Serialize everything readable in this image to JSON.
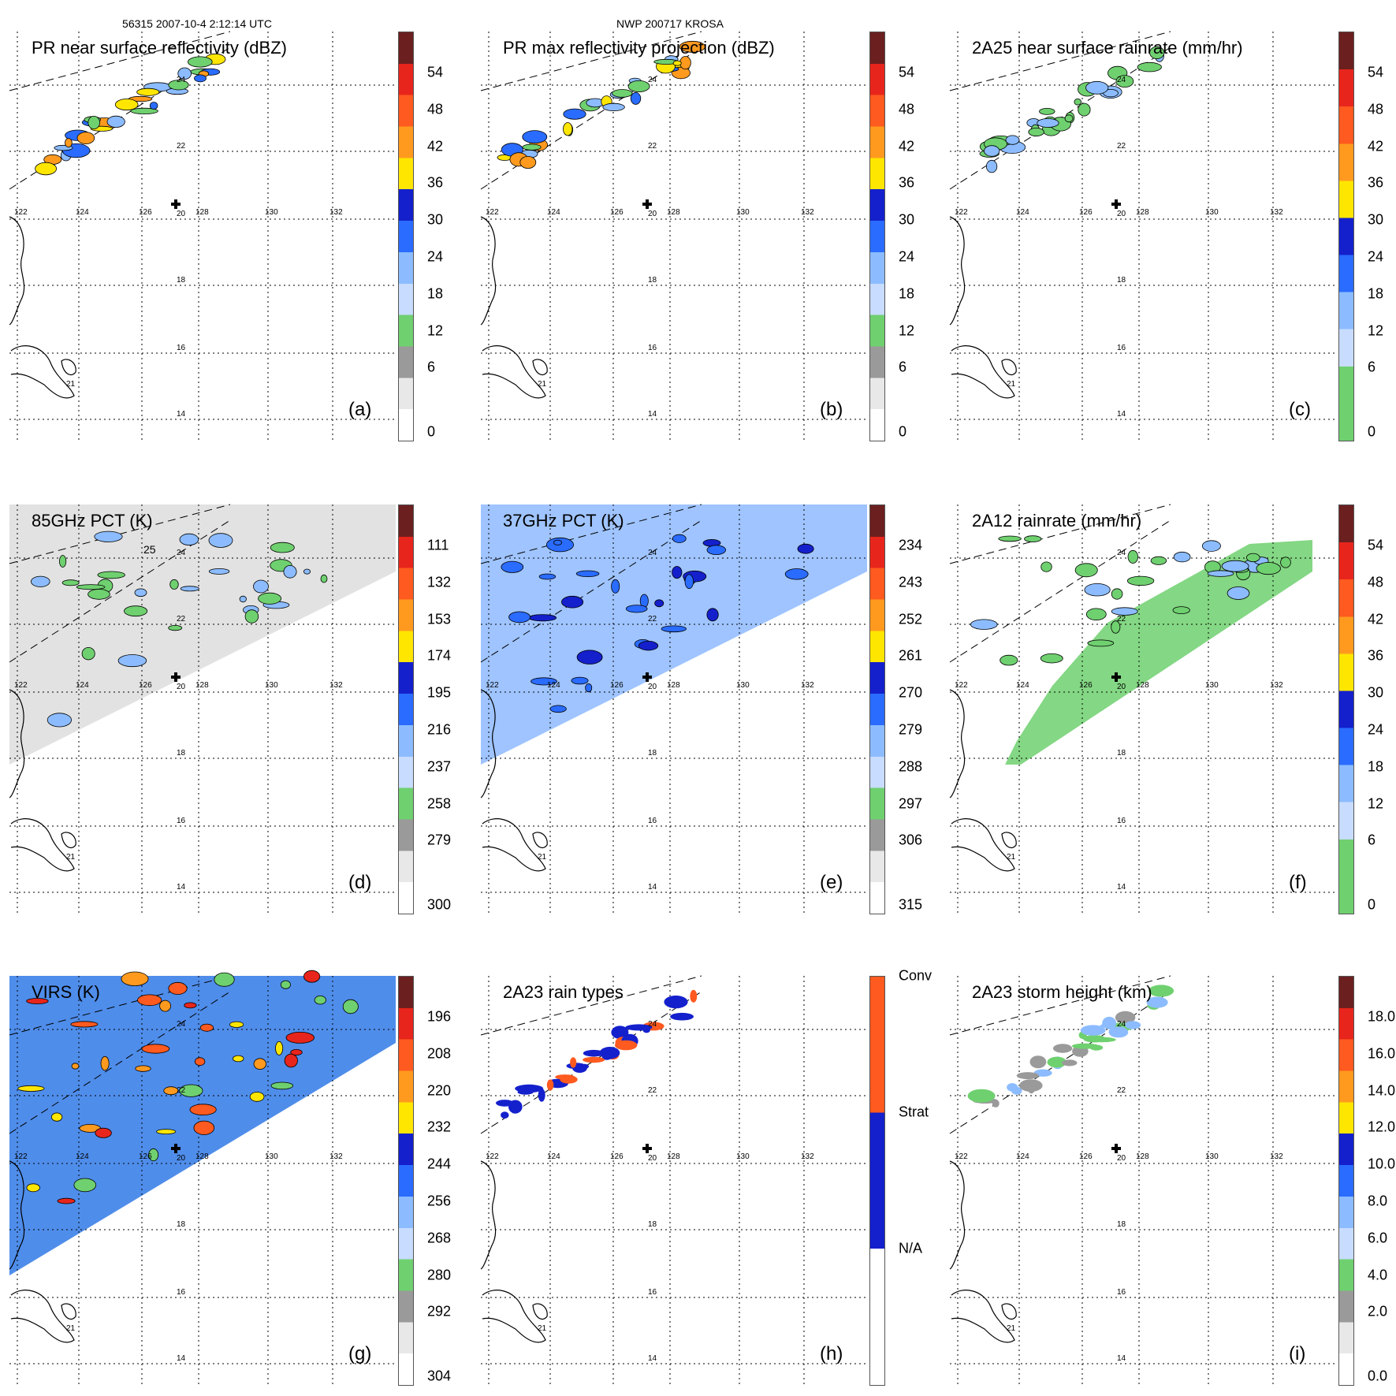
{
  "header": {
    "orbit_label": "56315 2007-10-4 2:12:14 UTC",
    "storm_label": "NWP 200717 KROSA"
  },
  "map": {
    "lon_ticks": [
      "122",
      "124",
      "126",
      "128",
      "130",
      "132"
    ],
    "lat_ticks": [
      "24",
      "22",
      "20",
      "18",
      "16",
      "14"
    ],
    "extra_lat_label": "25",
    "island_label": "21"
  },
  "panels": [
    {
      "id": "a",
      "title": "PR near surface reflectivity (dBZ)",
      "label": "(a)",
      "colorbar": {
        "type": "radar",
        "ticks": [
          "54",
          "48",
          "42",
          "36",
          "30",
          "24",
          "18",
          "12",
          "6",
          "0"
        ]
      }
    },
    {
      "id": "b",
      "title": "PR max reflectivity projection (dBZ)",
      "label": "(b)",
      "colorbar": {
        "type": "radar",
        "ticks": [
          "54",
          "48",
          "42",
          "36",
          "30",
          "24",
          "18",
          "12",
          "6",
          "0"
        ]
      }
    },
    {
      "id": "c",
      "title": "2A25 near surface rainrate (mm/hr)",
      "label": "(c)",
      "colorbar": {
        "type": "rain",
        "ticks": [
          "54",
          "48",
          "42",
          "36",
          "30",
          "24",
          "18",
          "12",
          "6",
          "0"
        ]
      }
    },
    {
      "id": "d",
      "title": "85GHz PCT (K)",
      "label": "(d)",
      "colorbar": {
        "type": "radar",
        "ticks": [
          "111",
          "132",
          "153",
          "174",
          "195",
          "216",
          "237",
          "258",
          "279",
          "300"
        ]
      }
    },
    {
      "id": "e",
      "title": "37GHz PCT (K)",
      "label": "(e)",
      "colorbar": {
        "type": "radar",
        "ticks": [
          "234",
          "243",
          "252",
          "261",
          "270",
          "279",
          "288",
          "297",
          "306",
          "315"
        ]
      }
    },
    {
      "id": "f",
      "title": "2A12 rainrate (mm/hr)",
      "label": "(f)",
      "colorbar": {
        "type": "rain",
        "ticks": [
          "54",
          "48",
          "42",
          "36",
          "30",
          "24",
          "18",
          "12",
          "6",
          "0"
        ]
      }
    },
    {
      "id": "g",
      "title": "VIRS (K)",
      "label": "(g)",
      "colorbar": {
        "type": "radar",
        "ticks": [
          "196",
          "208",
          "220",
          "232",
          "244",
          "256",
          "268",
          "280",
          "292",
          "304"
        ]
      }
    },
    {
      "id": "h",
      "title": "2A23 rain types",
      "label": "(h)",
      "colorbar": {
        "type": "raintype",
        "ticks": [
          "Conv",
          "Strat",
          "N/A"
        ]
      }
    },
    {
      "id": "i",
      "title": "2A23 storm height (km)",
      "label": "(i)",
      "colorbar": {
        "type": "radar",
        "ticks": [
          "18.0",
          "16.0",
          "14.0",
          "12.0",
          "10.0",
          "8.0",
          "6.0",
          "4.0",
          "2.0",
          "0.0"
        ]
      }
    }
  ],
  "colors": {
    "dark_red": "#6b1f1f",
    "red": "#e8251c",
    "orange_red": "#ff5a1f",
    "orange": "#ff9a1f",
    "yellow": "#ffe600",
    "blue_dark": "#1420cc",
    "blue": "#2a6cff",
    "blue_light": "#8cbcff",
    "blue_pale": "#c8dcff",
    "green": "#6fd06f",
    "gray": "#9a9a9a",
    "gray_light": "#e8e8e8"
  }
}
